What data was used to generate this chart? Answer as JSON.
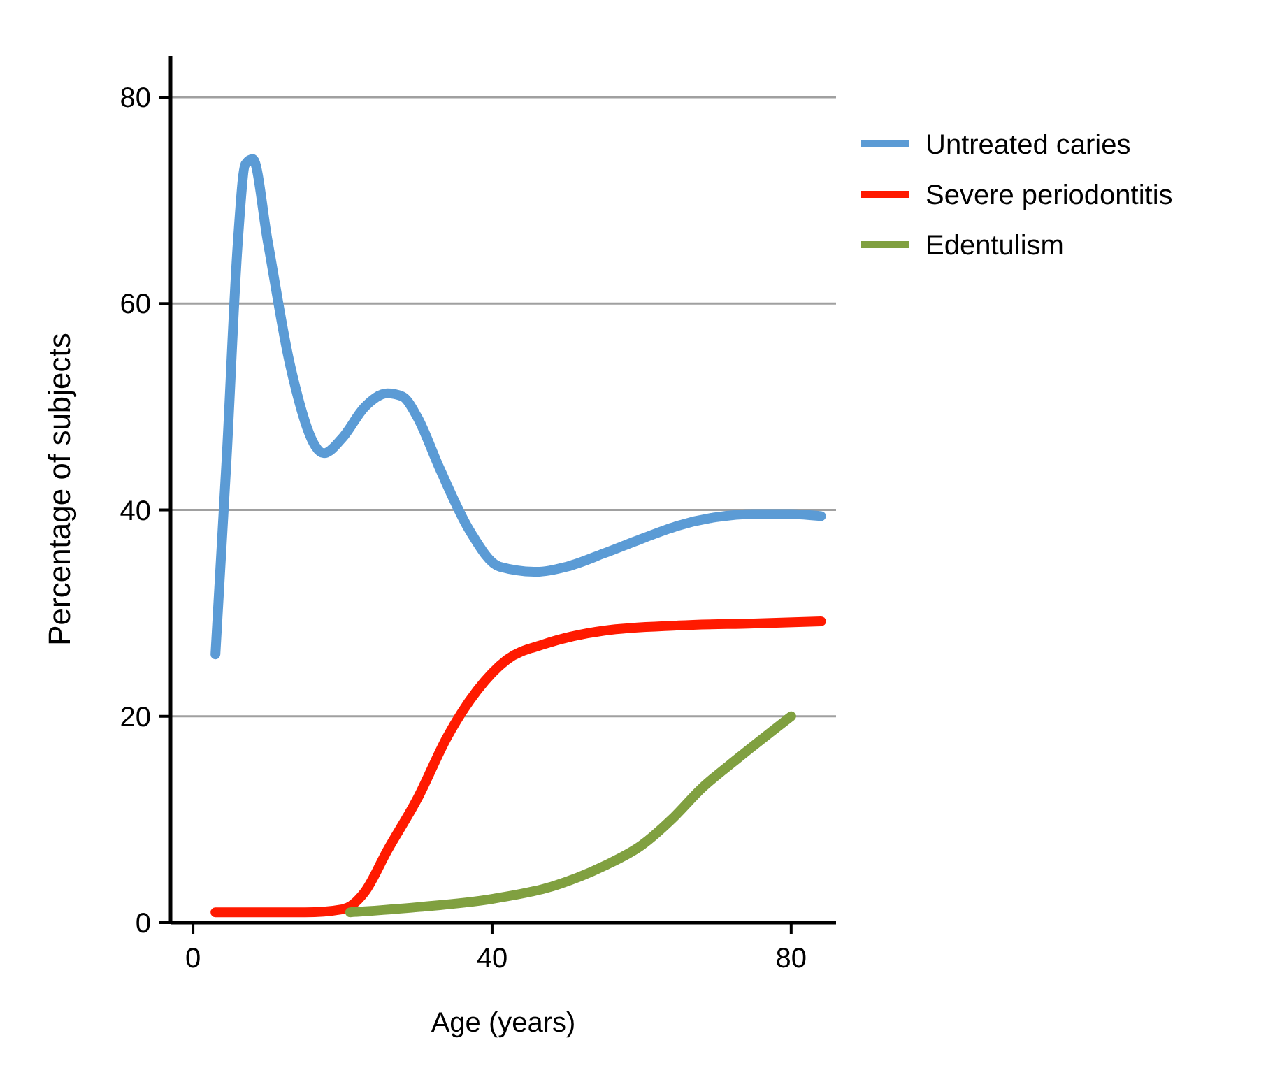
{
  "chart_data": {
    "type": "line",
    "xlabel": "Age (years)",
    "ylabel": "Percentage of subjects",
    "xlim": [
      -3,
      86
    ],
    "ylim": [
      0,
      84
    ],
    "xticks": [
      0,
      40,
      80
    ],
    "yticks": [
      0,
      20,
      40,
      60,
      80
    ],
    "grid": "y",
    "legend": "right",
    "line_style": "solid",
    "marker": "none",
    "series": [
      {
        "name": "Untreated caries",
        "color": "#5b9bd5",
        "x": [
          3,
          4.5,
          6,
          7,
          8,
          10,
          13,
          17.5,
          20,
          23,
          26,
          28,
          30,
          33,
          37,
          41,
          46,
          50,
          55,
          60,
          65,
          70,
          75,
          80,
          84
        ],
        "values": [
          26,
          45,
          66,
          73.5,
          74,
          66,
          54,
          45.5,
          47,
          50,
          51.3,
          51,
          49,
          44,
          38,
          34.5,
          34,
          34.5,
          35.8,
          37.2,
          38.5,
          39.3,
          39.6,
          39.6,
          39.4
        ]
      },
      {
        "name": "Severe periodontitis",
        "color": "#ff1a00",
        "x": [
          3,
          10,
          15,
          20,
          23,
          26,
          30,
          34,
          38,
          42,
          47,
          55,
          65,
          75,
          84
        ],
        "values": [
          1,
          1,
          1,
          1.3,
          3,
          7,
          12,
          18,
          22.5,
          25.5,
          27,
          28.3,
          28.8,
          29,
          29.2
        ]
      },
      {
        "name": "Edentulism",
        "color": "#80a040",
        "x": [
          21,
          30,
          40,
          48,
          55,
          60,
          64,
          68,
          73,
          80
        ],
        "values": [
          1,
          1.5,
          2.3,
          3.5,
          5.5,
          7.5,
          10,
          13,
          16,
          20
        ]
      }
    ]
  }
}
